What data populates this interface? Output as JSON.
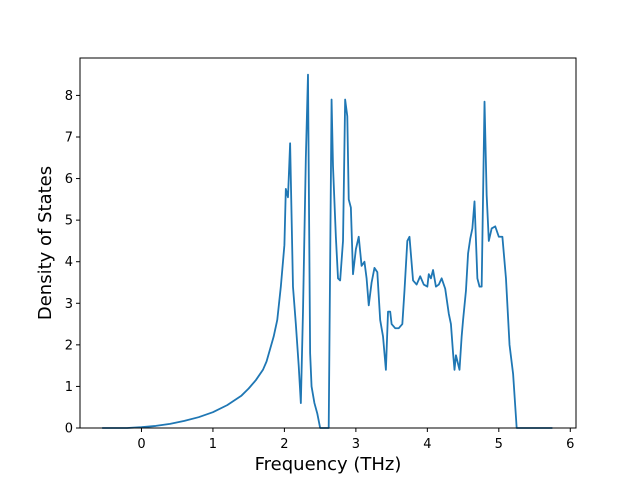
{
  "chart_data": {
    "type": "line",
    "title": "",
    "xlabel": "Frequency (THz)",
    "ylabel": "Density of States",
    "xlim": [
      -0.86,
      6.08
    ],
    "ylim": [
      0,
      8.9
    ],
    "xticks": [
      0,
      1,
      2,
      3,
      4,
      5,
      6
    ],
    "yticks": [
      0,
      1,
      2,
      3,
      4,
      5,
      6,
      7,
      8
    ],
    "grid": false,
    "legend": "none",
    "color": "#1f77b4",
    "series": [
      {
        "x": [
          -0.55,
          -0.2,
          0.0,
          0.2,
          0.4,
          0.6,
          0.8,
          1.0,
          1.2,
          1.4,
          1.5,
          1.6,
          1.7,
          1.75,
          1.8,
          1.85,
          1.9,
          1.95,
          2.0,
          2.02,
          2.05,
          2.08,
          2.12,
          2.16,
          2.2,
          2.23,
          2.26,
          2.3,
          2.33,
          2.36,
          2.38,
          2.42,
          2.46,
          2.5,
          2.54,
          2.58,
          2.62,
          2.66,
          2.68,
          2.72,
          2.75,
          2.78,
          2.82,
          2.85,
          2.88,
          2.9,
          2.93,
          2.96,
          3.0,
          3.04,
          3.08,
          3.12,
          3.15,
          3.18,
          3.22,
          3.26,
          3.3,
          3.34,
          3.38,
          3.42,
          3.45,
          3.48,
          3.5,
          3.55,
          3.6,
          3.65,
          3.68,
          3.72,
          3.75,
          3.8,
          3.85,
          3.9,
          3.95,
          4.0,
          4.02,
          4.05,
          4.08,
          4.12,
          4.16,
          4.2,
          4.25,
          4.3,
          4.33,
          4.36,
          4.38,
          4.4,
          4.45,
          4.48,
          4.5,
          4.54,
          4.57,
          4.6,
          4.63,
          4.66,
          4.7,
          4.73,
          4.76,
          4.8,
          4.83,
          4.86,
          4.9,
          4.95,
          5.0,
          5.05,
          5.1,
          5.15,
          5.2,
          5.25,
          5.3,
          5.5,
          5.75
        ],
        "y": [
          0,
          0,
          0.02,
          0.05,
          0.1,
          0.17,
          0.26,
          0.38,
          0.55,
          0.78,
          0.95,
          1.15,
          1.4,
          1.6,
          1.9,
          2.2,
          2.6,
          3.4,
          4.4,
          5.75,
          5.55,
          6.85,
          3.4,
          2.5,
          1.5,
          0.6,
          2.8,
          6.5,
          8.5,
          1.8,
          1.0,
          0.6,
          0.35,
          0.0,
          0.0,
          0.0,
          0.0,
          7.9,
          6.3,
          4.6,
          3.6,
          3.55,
          4.5,
          7.9,
          7.5,
          5.5,
          5.3,
          3.7,
          4.3,
          4.6,
          3.9,
          4.0,
          3.6,
          2.95,
          3.5,
          3.85,
          3.75,
          2.6,
          2.2,
          1.4,
          2.8,
          2.8,
          2.5,
          2.4,
          2.4,
          2.5,
          3.3,
          4.5,
          4.6,
          3.55,
          3.45,
          3.65,
          3.45,
          3.4,
          3.7,
          3.6,
          3.8,
          3.4,
          3.45,
          3.6,
          3.35,
          2.75,
          2.5,
          1.8,
          1.4,
          1.75,
          1.4,
          2.2,
          2.6,
          3.3,
          4.2,
          4.55,
          4.8,
          5.45,
          3.6,
          3.4,
          3.4,
          7.85,
          5.6,
          4.5,
          4.8,
          4.85,
          4.6,
          4.6,
          3.6,
          2.0,
          1.3,
          0.0,
          0.0,
          0.0,
          0.0
        ]
      }
    ]
  }
}
